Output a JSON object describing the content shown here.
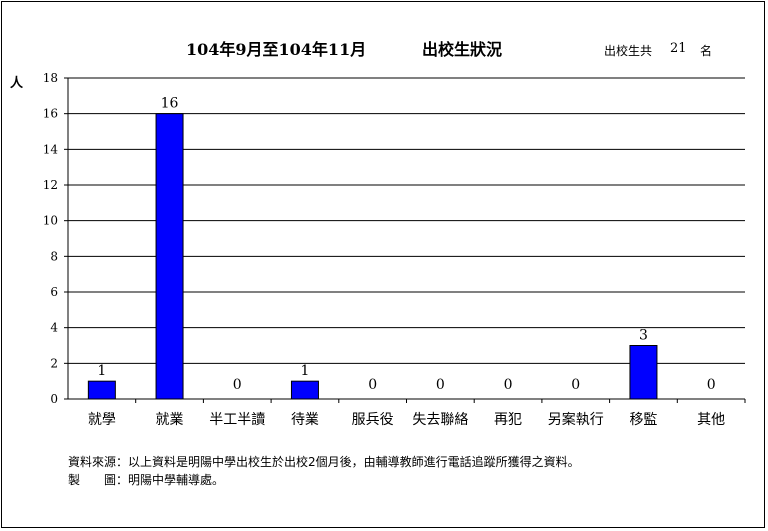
{
  "header": {
    "date_range": "104年9月至104年11月",
    "title": "出校生狀況",
    "total_label": "出校生共",
    "total_value": "21",
    "total_unit": "名"
  },
  "chart_data": {
    "type": "bar",
    "ylabel": "人",
    "ylim": [
      0,
      18
    ],
    "yticks": [
      0,
      2,
      4,
      6,
      8,
      10,
      12,
      14,
      16,
      18
    ],
    "grid": true,
    "bar_color": "#0000ff",
    "categories": [
      "就學",
      "就業",
      "半工半讀",
      "待業",
      "服兵役",
      "失去聯絡",
      "再犯",
      "另案執行",
      "移監",
      "其他"
    ],
    "values": [
      1,
      16,
      0,
      1,
      0,
      0,
      0,
      0,
      3,
      0
    ]
  },
  "footer": {
    "source": "資料來源：以上資料是明陽中學出校生於出校2個月後，由輔導教師進行電話追蹤所獲得之資料。",
    "maker": "製　　圖：明陽中學輔導處。"
  }
}
